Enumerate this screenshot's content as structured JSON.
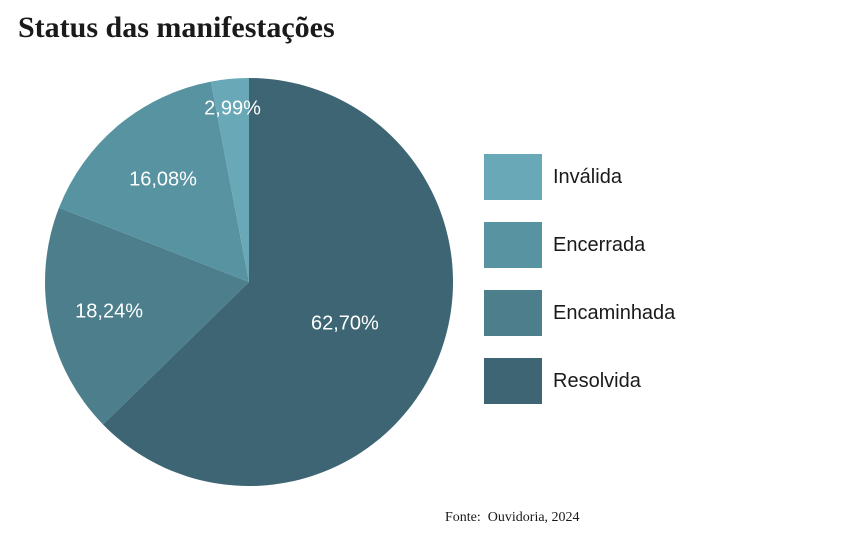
{
  "header": {
    "title": "Status das manifestações"
  },
  "footer": {
    "source": "Fonte:  Ouvidoria, 2024"
  },
  "chart_data": {
    "type": "pie",
    "title": "Status das manifestações",
    "source": "Fonte:  Ouvidoria, 2024",
    "legend_position": "right",
    "label_color": "#ffffff",
    "start_at": "12-o-clock",
    "slices": [
      {
        "label": "Inválida",
        "value": 2.99,
        "display": "2,99%",
        "color": "#68a8b7",
        "label_radius": 0.86
      },
      {
        "label": "Encerrada",
        "value": 16.08,
        "display": "16,08%",
        "color": "#5893a2",
        "label_radius": 0.66
      },
      {
        "label": "Encaminhada",
        "value": 18.24,
        "display": "18,24%",
        "color": "#4c7e8c",
        "label_radius": 0.7
      },
      {
        "label": "Resolvida",
        "value": 62.7,
        "display": "62,70%",
        "color": "#3d6573",
        "label_radius": 0.51
      }
    ]
  }
}
